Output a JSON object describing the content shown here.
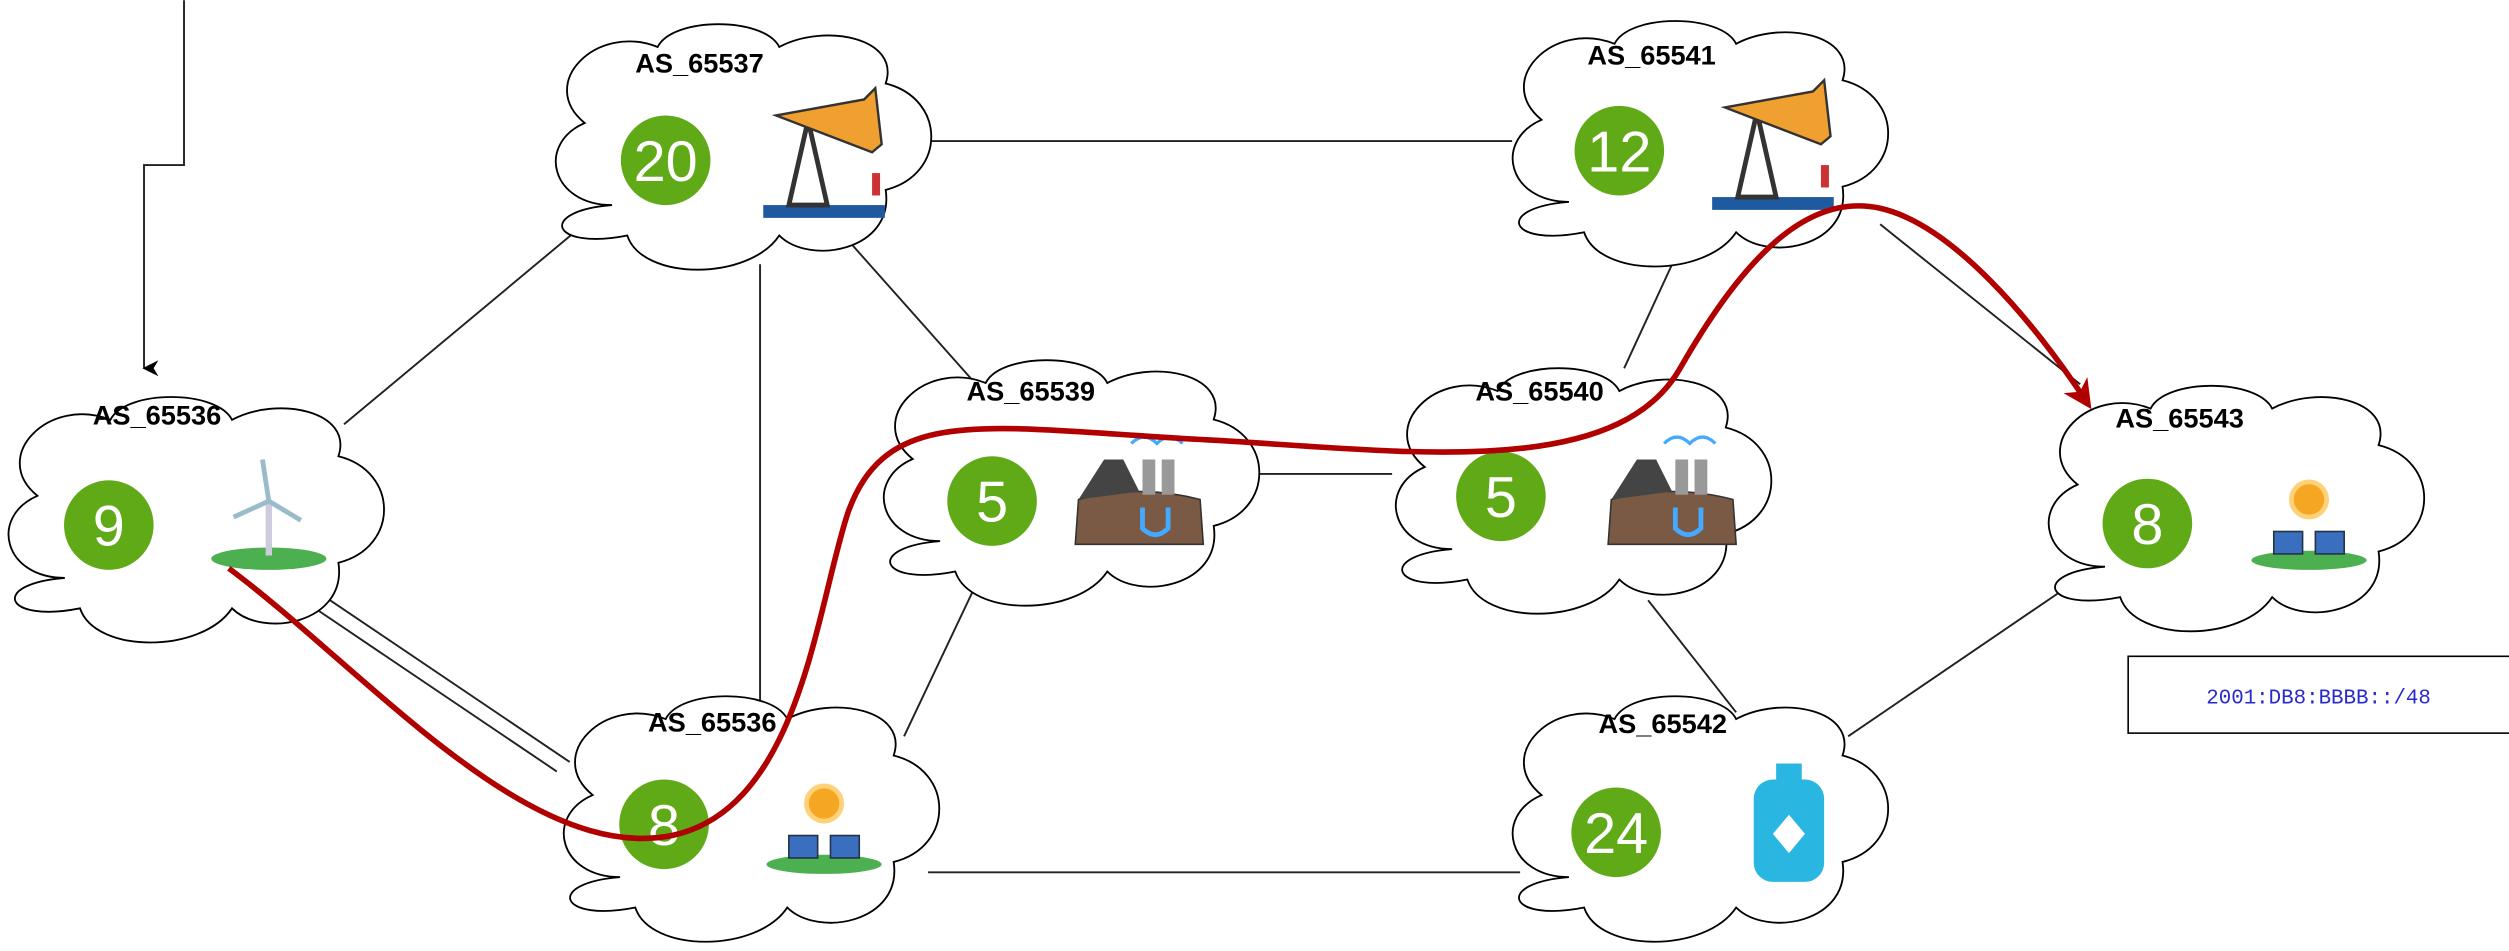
{
  "nodes": [
    {
      "label": "AS_65536",
      "value": 9
    },
    {
      "label": "AS_65537",
      "value": 20
    },
    {
      "label": "AS_65541",
      "value": 12
    },
    {
      "label": "AS_65539",
      "value": 5
    },
    {
      "label": "AS_65540",
      "value": 5
    },
    {
      "label": "AS_65543",
      "value": 8
    },
    {
      "label": "AS_65536",
      "value": 8
    },
    {
      "label": "AS_65542",
      "value": 24
    }
  ],
  "prefix": "2001:DB8:BBBB::/48"
}
